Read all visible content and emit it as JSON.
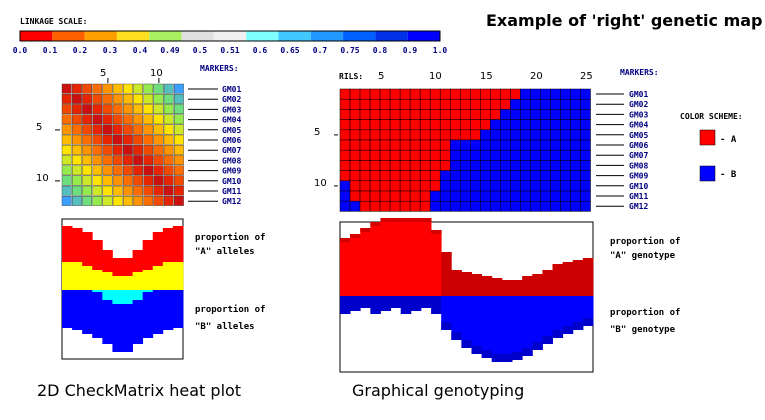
{
  "title": "Example of 'right' genetic map",
  "linkage_scale": {
    "label": "LINKAGE SCALE:",
    "colors": [
      "#ff0000",
      "#ff6000",
      "#ffa000",
      "#ffe020",
      "#a8f060",
      "#e0e0e0",
      "#f0f0f0",
      "#80ffff",
      "#40c8ff",
      "#2098ff",
      "#0060ff",
      "#0030e8",
      "#0000ff"
    ],
    "ticks": [
      "0.0",
      "0.1",
      "0.2",
      "0.3",
      "0.4",
      "0.49",
      "0.5",
      "0.51",
      "0.6",
      "0.65",
      "0.7",
      "0.75",
      "0.8",
      "0.9",
      "1.0"
    ]
  },
  "markers": [
    "GM01",
    "GM02",
    "GM03",
    "GM04",
    "GM05",
    "GM06",
    "GM07",
    "GM08",
    "GM09",
    "GM10",
    "GM11",
    "GM12"
  ],
  "markers_label": "MARKERS:",
  "heatmap": {
    "col_ticks": [
      "5",
      "10"
    ],
    "row_ticks": [
      "5",
      "10"
    ]
  },
  "genotyping": {
    "rils_label": "RILS:",
    "col_ticks": [
      "5",
      "10",
      "15",
      "20",
      "25"
    ],
    "row_ticks": [
      "5",
      "10"
    ],
    "b_runs": [
      [
        18,
        7
      ],
      [
        17,
        8
      ],
      [
        16,
        9
      ],
      [
        15,
        10
      ],
      [
        14,
        11
      ],
      [
        11,
        14
      ],
      [
        11,
        14
      ],
      [
        11,
        14
      ],
      [
        10,
        15
      ],
      [
        10,
        15
      ],
      [
        9,
        16
      ],
      [
        9,
        16
      ]
    ],
    "b_prefix": [
      0,
      0,
      0,
      0,
      0,
      0,
      0,
      0,
      0,
      1,
      1,
      2
    ]
  },
  "color_scheme": {
    "label": "COLOR SCHEME:",
    "a_label": "- A",
    "b_label": "- B",
    "a_color": "#ff0000",
    "b_color": "#0000ff"
  },
  "notes_left": {
    "a_line1": "proportion of",
    "a_line2": "\"A\" alleles",
    "b_line1": "proportion of",
    "b_line2": "\"B\" alleles"
  },
  "notes_right": {
    "a_line1": "proportion of",
    "a_line2": "\"A\" genotype",
    "b_line1": "proportion of",
    "b_line2": "\"B\" genotype"
  },
  "captions": {
    "left": "2D CheckMatrix heat plot",
    "right": "Graphical genotyping"
  }
}
